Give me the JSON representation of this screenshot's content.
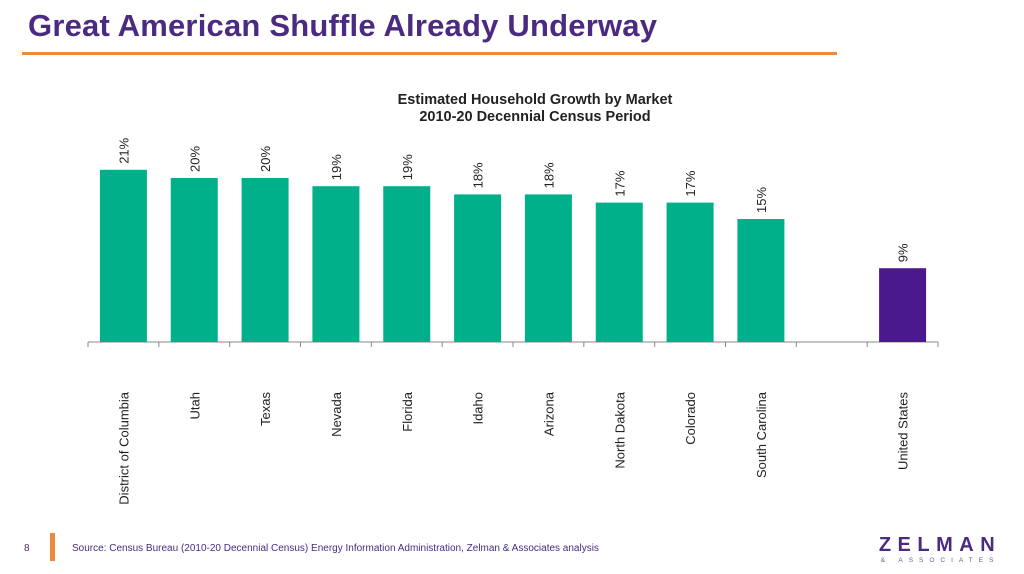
{
  "slide": {
    "title": "Great American Shuffle Already Underway",
    "page_number": "8",
    "source": "Source: Census Bureau (2010-20 Decennial Census) Energy Information Administration, Zelman & Associates analysis",
    "logo_main": "ZELMAN",
    "logo_sub": "& ASSOCIATES"
  },
  "colors": {
    "title": "#4b2a82",
    "accent_rule": "#ec8a3c",
    "state_bar": "#00b08a",
    "us_bar": "#4a1a8c",
    "axis": "#888888"
  },
  "chart_data": {
    "type": "bar",
    "title_line1": "Estimated Household Growth by Market",
    "title_line2": "2010-20 Decennial Census Period",
    "categories": [
      "District of Columbia",
      "Utah",
      "Texas",
      "Nevada",
      "Florida",
      "Idaho",
      "Arizona",
      "North Dakota",
      "Colorado",
      "South Carolina",
      "",
      "United States"
    ],
    "values": [
      21,
      20,
      20,
      19,
      19,
      18,
      18,
      17,
      17,
      15,
      null,
      9
    ],
    "data_labels": [
      "21%",
      "20%",
      "20%",
      "19%",
      "19%",
      "18%",
      "18%",
      "17%",
      "17%",
      "15%",
      "",
      "9%"
    ],
    "highlight_category": "United States",
    "ylim": [
      0,
      22
    ],
    "y_axis_visible": false,
    "grid": false,
    "legend": "none"
  }
}
